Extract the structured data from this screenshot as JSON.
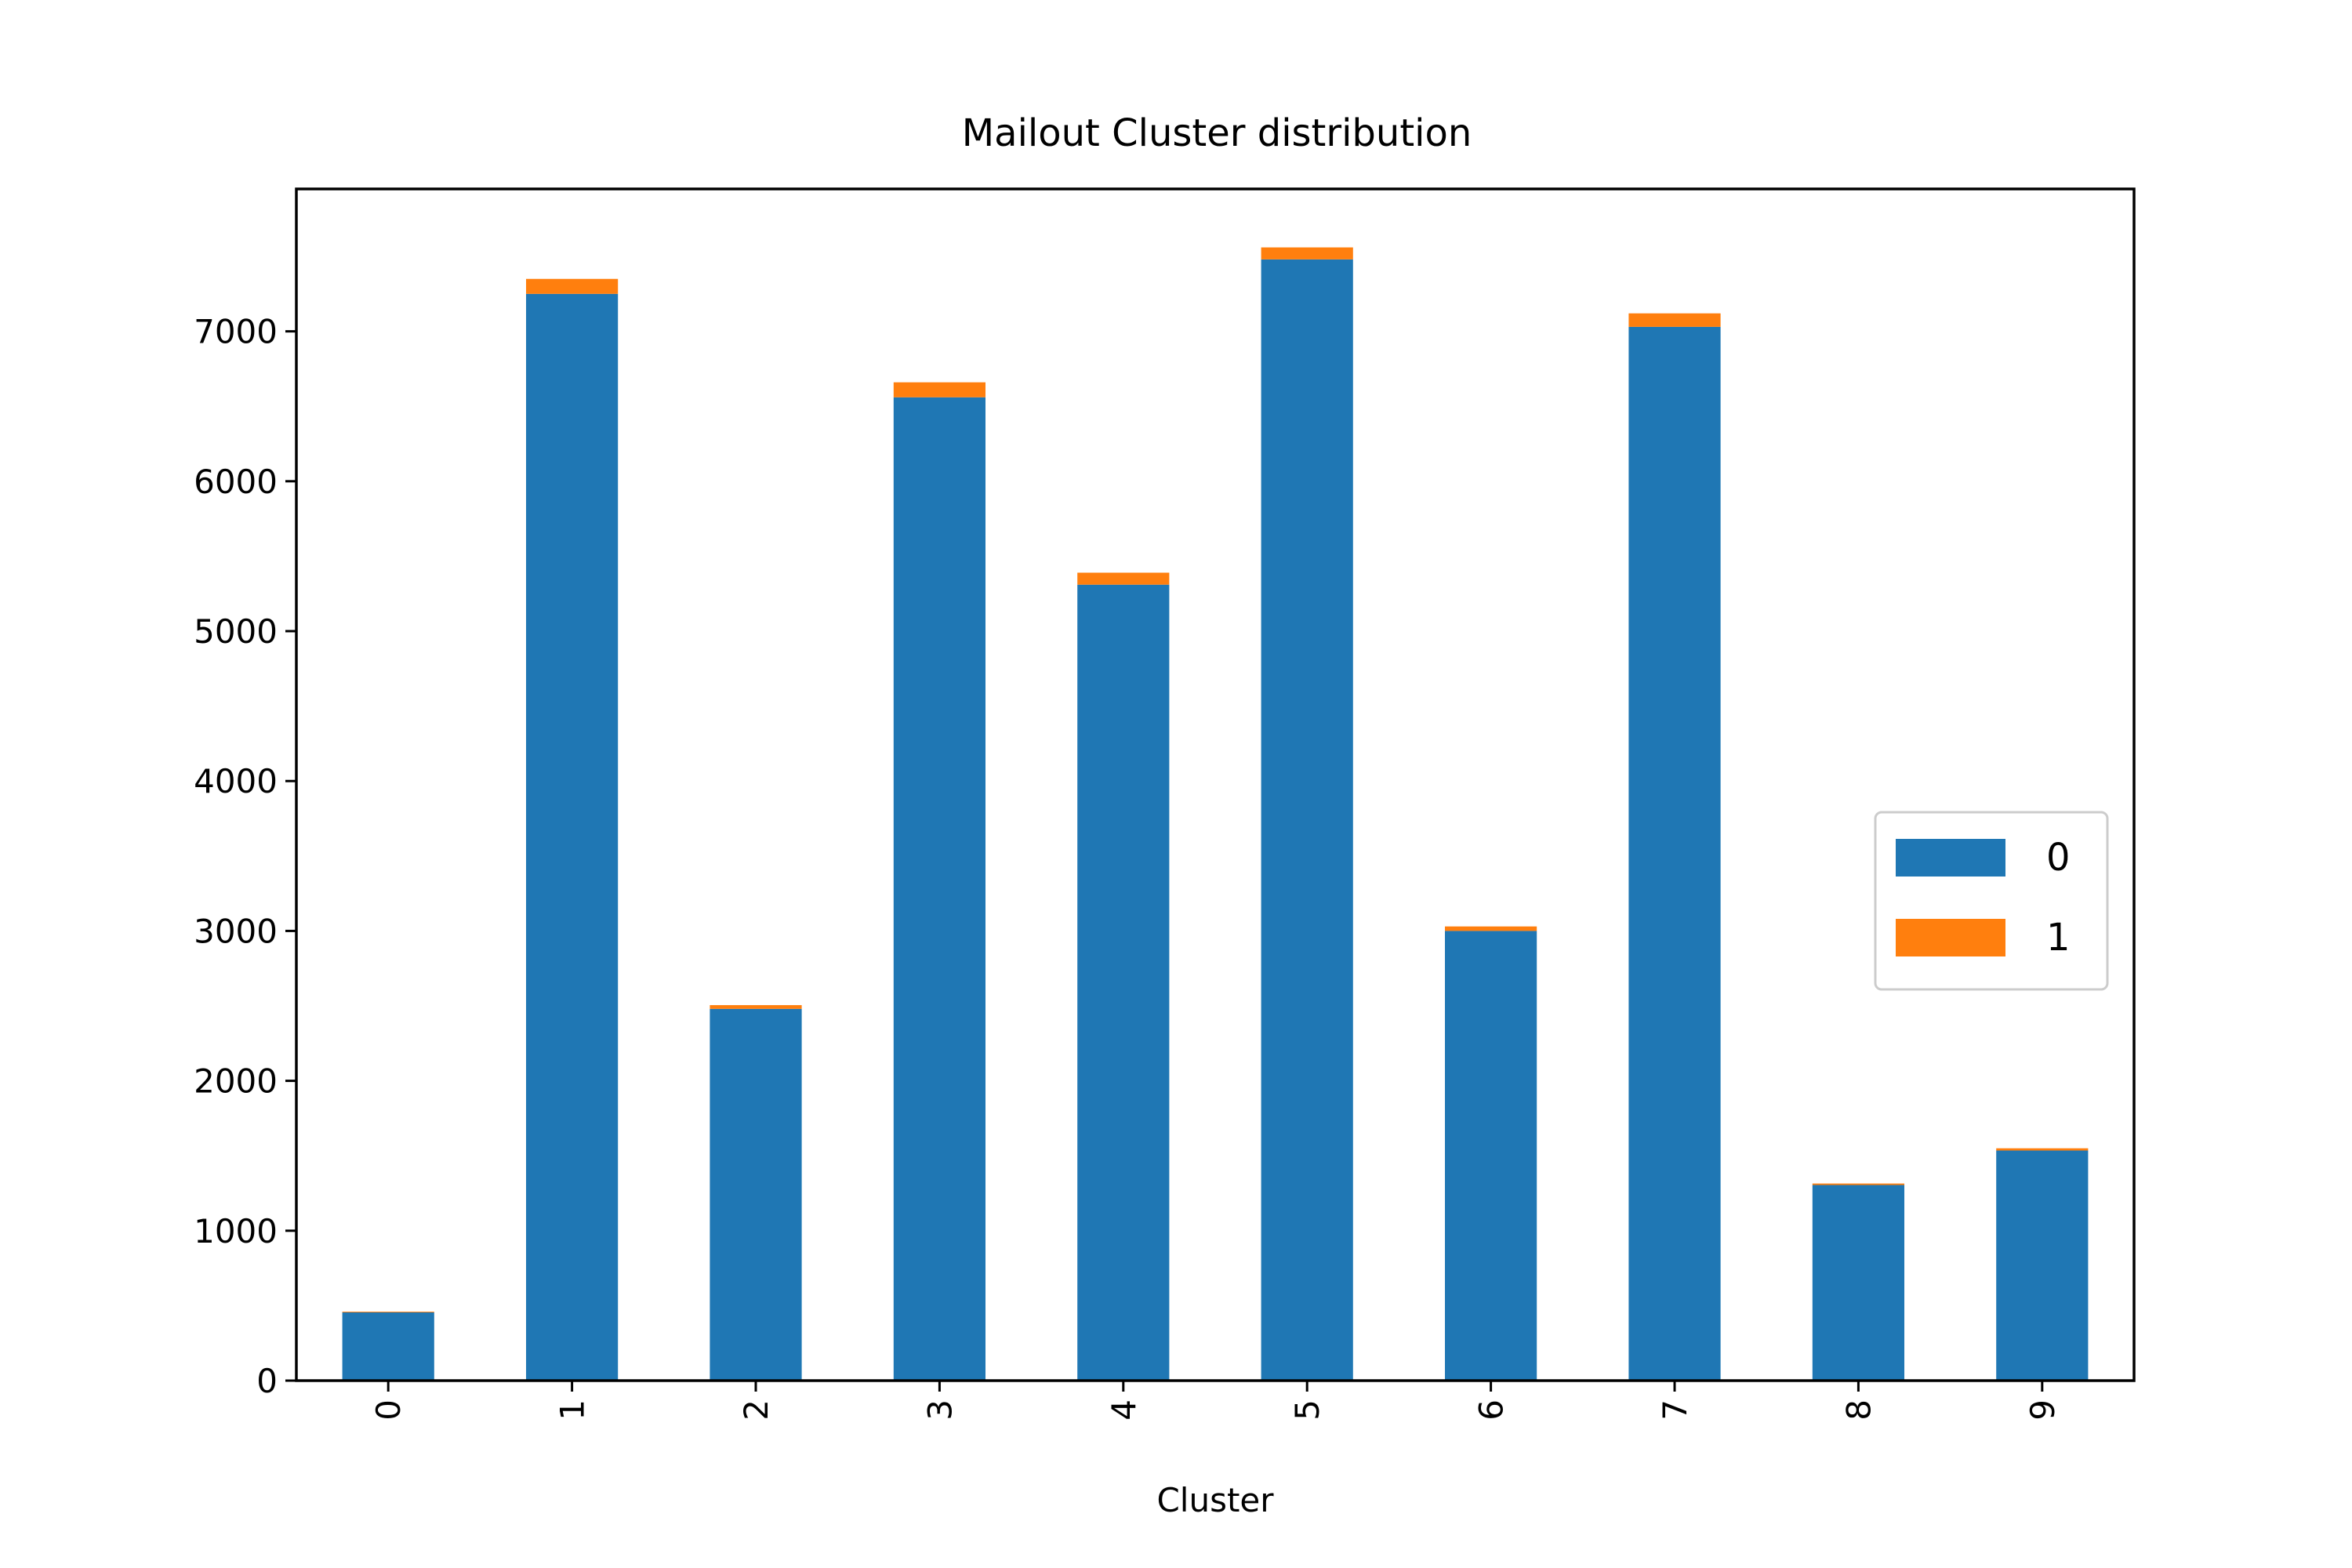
{
  "chart_data": {
    "type": "bar",
    "stacked": true,
    "title": "Mailout Cluster distribution",
    "xlabel": "Cluster",
    "ylabel": "",
    "categories": [
      "0",
      "1",
      "2",
      "3",
      "4",
      "5",
      "6",
      "7",
      "8",
      "9"
    ],
    "series": [
      {
        "name": "0",
        "color": "#1f77b4",
        "values": [
          455,
          7250,
          2480,
          6560,
          5310,
          7480,
          3000,
          7030,
          1305,
          1535
        ]
      },
      {
        "name": "1",
        "color": "#ff7f0e",
        "values": [
          5,
          100,
          25,
          100,
          80,
          80,
          30,
          90,
          10,
          15
        ]
      }
    ],
    "ylim": [
      0,
      7950
    ],
    "yticks": [
      0,
      1000,
      2000,
      3000,
      4000,
      5000,
      6000,
      7000
    ],
    "grid": false,
    "legend_position": "center-right"
  }
}
